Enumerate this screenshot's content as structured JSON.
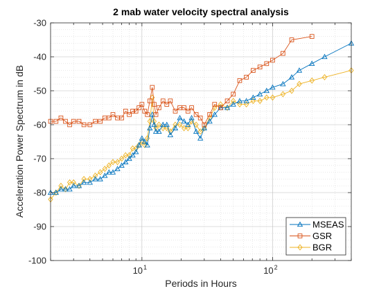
{
  "chart_data": {
    "type": "line",
    "title": "2 mab water velocity spectral analysis",
    "xlabel": "Periods in Hours",
    "ylabel": "Acceleration Power Spectrum in dB",
    "xscale": "log",
    "xlim": [
      2,
      400
    ],
    "ylim": [
      -100,
      -30
    ],
    "xticks": [
      10,
      100
    ],
    "xtick_labels": [
      {
        "base": "10",
        "exp": "1"
      },
      {
        "base": "10",
        "exp": "2"
      }
    ],
    "yticks": [
      -100,
      -90,
      -80,
      -70,
      -60,
      -50,
      -40,
      -30
    ],
    "grid": true,
    "legend_position": "bottom-right",
    "series": [
      {
        "name": "MSEAS",
        "color": "#0072BD",
        "marker": "triangle",
        "x": [
          2.0,
          2.2,
          2.4,
          2.6,
          2.8,
          3.0,
          3.3,
          3.6,
          4.0,
          4.4,
          4.8,
          5.2,
          5.6,
          6.0,
          6.5,
          7.0,
          7.5,
          8.0,
          8.5,
          9.0,
          9.5,
          10.0,
          10.5,
          11.0,
          11.5,
          12.0,
          12.4,
          12.8,
          13.5,
          14.5,
          15.5,
          16.5,
          18.0,
          19.5,
          21.0,
          22.5,
          24.0,
          26.0,
          28.0,
          30.0,
          33.0,
          36.0,
          40.0,
          45.0,
          50.0,
          56.0,
          63.0,
          71.0,
          80.0,
          90.0,
          100.0,
          120.0,
          140.0,
          160.0,
          200.0,
          250.0,
          400.0
        ],
        "y": [
          -80,
          -80,
          -79,
          -79,
          -79,
          -78,
          -78,
          -77,
          -77,
          -76,
          -76,
          -75,
          -74,
          -74,
          -73,
          -72,
          -71,
          -70,
          -69,
          -68,
          -66,
          -64,
          -65,
          -66,
          -61,
          -57,
          -60,
          -62,
          -62,
          -60,
          -60,
          -63,
          -61,
          -58,
          -59,
          -60,
          -58,
          -62,
          -64,
          -61,
          -59,
          -57,
          -55,
          -55,
          -54,
          -53,
          -53,
          -52,
          -51,
          -50,
          -49,
          -48,
          -46,
          -44,
          -42,
          -40,
          -36
        ]
      },
      {
        "name": "GSR",
        "color": "#D95319",
        "marker": "square",
        "x": [
          2.0,
          2.2,
          2.4,
          2.6,
          2.8,
          3.0,
          3.3,
          3.6,
          4.0,
          4.4,
          4.8,
          5.2,
          5.6,
          6.0,
          6.5,
          7.0,
          7.5,
          8.0,
          8.5,
          9.0,
          9.5,
          10.0,
          10.5,
          11.0,
          11.5,
          12.0,
          12.4,
          12.8,
          13.5,
          14.5,
          15.5,
          16.5,
          18.0,
          19.5,
          21.0,
          22.5,
          24.0,
          26.0,
          28.0,
          30.0,
          33.0,
          36.0,
          40.0,
          45.0,
          50.0,
          56.0,
          63.0,
          71.0,
          80.0,
          90.0,
          100.0,
          120.0,
          140.0,
          200.0
        ],
        "y": [
          -59,
          -59,
          -58,
          -59,
          -60,
          -59,
          -59,
          -60,
          -60,
          -59,
          -59,
          -58,
          -58,
          -57,
          -58,
          -58,
          -56,
          -57,
          -56,
          -56,
          -55,
          -54,
          -56,
          -57,
          -53,
          -49,
          -54,
          -57,
          -55,
          -53,
          -54,
          -53,
          -56,
          -55,
          -55,
          -56,
          -55,
          -57,
          -58,
          -60,
          -57,
          -54,
          -55,
          -53,
          -51,
          -47,
          -46,
          -44,
          -43,
          -42,
          -41,
          -39,
          -35,
          -34
        ]
      },
      {
        "name": "BGR",
        "color": "#EDB120",
        "marker": "diamond",
        "x": [
          2.0,
          2.2,
          2.4,
          2.6,
          2.8,
          3.0,
          3.3,
          3.6,
          4.0,
          4.4,
          4.8,
          5.2,
          5.6,
          6.0,
          6.5,
          7.0,
          7.5,
          8.0,
          8.5,
          9.0,
          9.5,
          10.0,
          10.5,
          11.0,
          11.5,
          12.0,
          12.4,
          12.8,
          13.5,
          14.5,
          15.5,
          16.5,
          18.0,
          19.5,
          21.0,
          22.5,
          24.0,
          26.0,
          28.0,
          30.0,
          33.0,
          36.0,
          40.0,
          45.0,
          50.0,
          56.0,
          63.0,
          71.0,
          80.0,
          90.0,
          100.0,
          120.0,
          140.0,
          160.0,
          200.0,
          250.0,
          400.0
        ],
        "y": [
          -82,
          -80,
          -78,
          -79,
          -77,
          -77,
          -78,
          -76,
          -76,
          -75,
          -74,
          -73,
          -72,
          -71,
          -71,
          -70,
          -69,
          -69,
          -67,
          -67,
          -66,
          -65,
          -66,
          -64,
          -59,
          -52,
          -59,
          -61,
          -60,
          -61,
          -61,
          -62,
          -60,
          -60,
          -61,
          -61,
          -59,
          -60,
          -62,
          -61,
          -58,
          -55,
          -54,
          -55,
          -53,
          -54,
          -54,
          -53,
          -53,
          -52,
          -52,
          -51,
          -50,
          -48,
          -47,
          -46,
          -44
        ]
      }
    ]
  }
}
